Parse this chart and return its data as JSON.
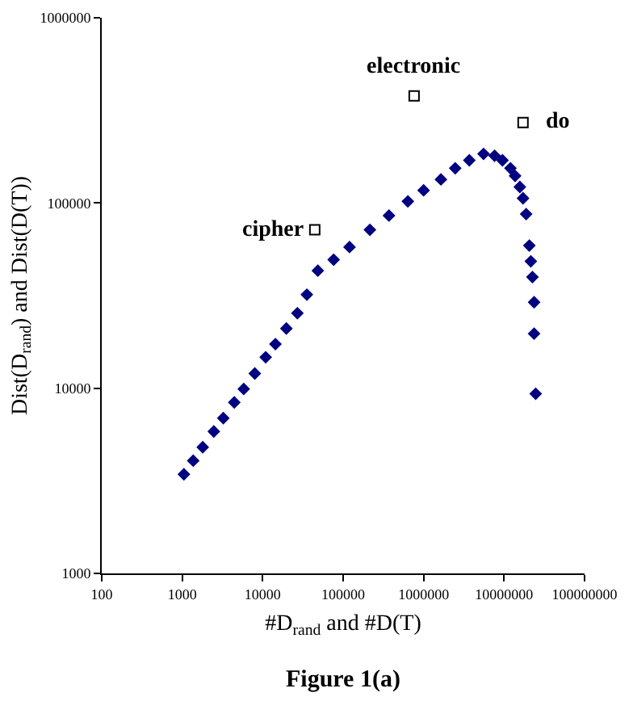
{
  "chart_data": {
    "type": "scatter",
    "title": "Figure 1(a)",
    "xlabel": "#D$_{rand}$ and #D(T)",
    "ylabel": "Dist(D$_{rand}$) and Dist(D(T))",
    "log": "xy",
    "xlim": [
      100,
      100000000
    ],
    "xticks": [
      100,
      1000,
      10000,
      100000,
      1000000,
      10000000,
      100000000
    ],
    "ylim": [
      1000,
      1000000
    ],
    "yticks": [
      1000,
      10000,
      100000,
      1000000
    ],
    "series": [
      {
        "color": "#000080",
        "marker": "diamond",
        "x": [
          1050,
          1370,
          1800,
          2470,
          3240,
          4440,
          5820,
          7980,
          10900,
          14400,
          19700,
          27000,
          35400,
          48500,
          76200,
          120000,
          215000,
          371000,
          637000,
          1000000,
          1640000,
          2470000,
          3700000,
          5560000,
          7620000,
          9550000,
          12000000,
          13700000,
          15700000,
          17200000,
          18800000,
          20600000,
          21500000,
          22500000,
          23600000,
          23600000,
          24700000
        ],
        "values": [
          3430,
          4060,
          4800,
          5840,
          6890,
          8380,
          9900,
          12000,
          14700,
          17300,
          21000,
          25400,
          32000,
          43100,
          49400,
          57800,
          71600,
          85500,
          102000,
          117000,
          134000,
          154000,
          170000,
          184000,
          180000,
          170000,
          154000,
          140000,
          122000,
          106000,
          87100,
          58900,
          48400,
          39800,
          29100,
          19700,
          9330
        ]
      },
      {
        "color": "#000000",
        "marker": "square",
        "x": [
          44400,
          762000,
          17200000
        ],
        "values": [
          71600,
          379000,
          272000
        ]
      }
    ],
    "annotations": [
      {
        "text": "cipher",
        "x": 44400,
        "y": 71600
      },
      {
        "text": "electronic",
        "x": 762000,
        "y": 379000
      },
      {
        "text": "do",
        "x": 17200000,
        "y": 272000
      }
    ]
  }
}
